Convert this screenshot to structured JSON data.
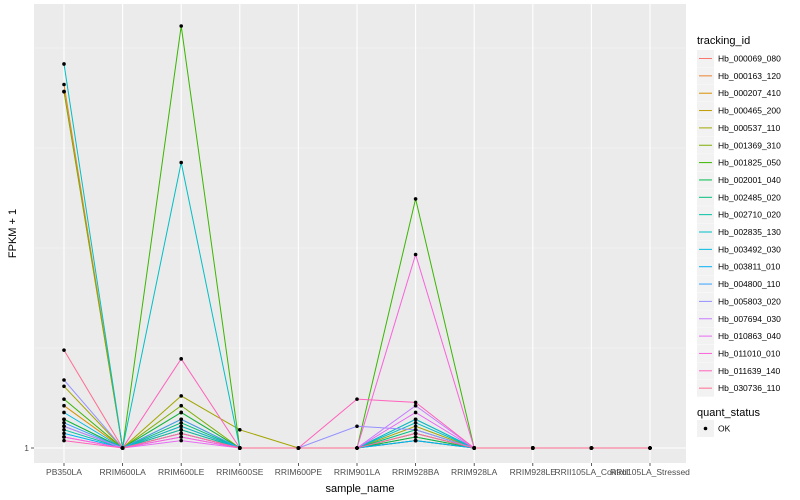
{
  "chart_data": {
    "type": "line",
    "title": "",
    "xlabel": "sample_name",
    "ylabel": "FPKM + 1",
    "y_tick_labels": [
      "1"
    ],
    "y_scale": "log",
    "ylim": [
      1,
      3.2
    ],
    "grid": true,
    "legend_position": "right",
    "categories": [
      "PB350LA",
      "RRIM600LA",
      "RRIM600LE",
      "RRIM600SE",
      "RRIM600PE",
      "RRIM901LA",
      "RRIM928BA",
      "RRIM928LA",
      "RRIM928LE",
      "RRII105LA_Control",
      "RRII105LA_Stressed"
    ],
    "legend": {
      "title": "tracking_id",
      "entries": [
        "Hb_000069_080",
        "Hb_000163_120",
        "Hb_000207_410",
        "Hb_000465_200",
        "Hb_000537_110",
        "Hb_001369_310",
        "Hb_001825_050",
        "Hb_002001_040",
        "Hb_002485_020",
        "Hb_002710_020",
        "Hb_002835_130",
        "Hb_003492_030",
        "Hb_003811_010",
        "Hb_004800_110",
        "Hb_005803_020",
        "Hb_007694_030",
        "Hb_010863_040",
        "Hb_011010_010",
        "Hb_011639_140",
        "Hb_030736_110"
      ],
      "colors": [
        "#F8766D",
        "#EA8331",
        "#D89000",
        "#C09B00",
        "#A3A500",
        "#7CAE00",
        "#39B600",
        "#00BB4E",
        "#00BF7D",
        "#00C1A3",
        "#00BFC4",
        "#00BAE0",
        "#00B0F6",
        "#35A2FF",
        "#9590FF",
        "#C77CFF",
        "#E76BF3",
        "#FA62DB",
        "#FF62BC",
        "#FF6C91"
      ]
    },
    "shape_legend": {
      "title": "quant_status",
      "entries": [
        "OK"
      ]
    },
    "series": [
      {
        "name": "Hb_000069_080",
        "values": [
          2.6,
          1.0,
          1.05,
          1.0,
          1.0,
          1.0,
          1.02,
          1.0,
          1.0,
          1.0,
          1.0
        ]
      },
      {
        "name": "Hb_000163_120",
        "values": [
          2.65,
          1.0,
          1.08,
          1.0,
          1.0,
          1.0,
          1.03,
          1.0,
          1.0,
          1.0,
          1.0
        ]
      },
      {
        "name": "Hb_000207_410",
        "values": [
          1.12,
          1.0,
          1.1,
          1.0,
          1.0,
          1.0,
          1.04,
          1.0,
          1.0,
          1.0,
          1.0
        ]
      },
      {
        "name": "Hb_000465_200",
        "values": [
          1.08,
          1.0,
          1.06,
          1.0,
          1.0,
          1.0,
          1.02,
          1.0,
          1.0,
          1.0,
          1.0
        ]
      },
      {
        "name": "Hb_000537_110",
        "values": [
          1.18,
          1.0,
          1.15,
          1.05,
          1.0,
          1.0,
          1.06,
          1.0,
          1.0,
          1.0,
          1.0
        ]
      },
      {
        "name": "Hb_001369_310",
        "values": [
          2.6,
          1.0,
          1.12,
          1.0,
          1.0,
          1.0,
          1.08,
          1.0,
          1.0,
          1.0,
          1.0
        ]
      },
      {
        "name": "Hb_001825_050",
        "values": [
          1.14,
          1.0,
          3.1,
          1.0,
          1.0,
          1.0,
          1.95,
          1.0,
          1.0,
          1.0,
          1.0
        ]
      },
      {
        "name": "Hb_002001_040",
        "values": [
          1.08,
          1.0,
          1.1,
          1.0,
          1.0,
          1.0,
          1.03,
          1.0,
          1.0,
          1.0,
          1.0
        ]
      },
      {
        "name": "Hb_002485_020",
        "values": [
          1.06,
          1.0,
          1.07,
          1.0,
          1.0,
          1.0,
          1.05,
          1.0,
          1.0,
          1.0,
          1.0
        ]
      },
      {
        "name": "Hb_002710_020",
        "values": [
          1.05,
          1.0,
          1.05,
          1.0,
          1.0,
          1.0,
          1.02,
          1.0,
          1.0,
          1.0,
          1.0
        ]
      },
      {
        "name": "Hb_002835_130",
        "values": [
          2.8,
          1.0,
          2.15,
          1.0,
          1.0,
          1.0,
          1.07,
          1.0,
          1.0,
          1.0,
          1.0
        ]
      },
      {
        "name": "Hb_003492_030",
        "values": [
          1.1,
          1.0,
          1.06,
          1.0,
          1.0,
          1.0,
          1.08,
          1.0,
          1.0,
          1.0,
          1.0
        ]
      },
      {
        "name": "Hb_003811_010",
        "values": [
          1.04,
          1.0,
          1.04,
          1.0,
          1.0,
          1.0,
          1.02,
          1.0,
          1.0,
          1.0,
          1.0
        ]
      },
      {
        "name": "Hb_004800_110",
        "values": [
          1.07,
          1.0,
          1.08,
          1.0,
          1.0,
          1.0,
          1.04,
          1.0,
          1.0,
          1.0,
          1.0
        ]
      },
      {
        "name": "Hb_005803_020",
        "values": [
          1.2,
          1.0,
          1.04,
          1.0,
          1.0,
          1.06,
          1.05,
          1.0,
          1.0,
          1.0,
          1.0
        ]
      },
      {
        "name": "Hb_007694_030",
        "values": [
          1.06,
          1.0,
          1.03,
          1.0,
          1.0,
          1.0,
          1.12,
          1.0,
          1.0,
          1.0,
          1.0
        ]
      },
      {
        "name": "Hb_010863_040",
        "values": [
          1.03,
          1.0,
          1.02,
          1.0,
          1.0,
          1.0,
          1.1,
          1.0,
          1.0,
          1.0,
          1.0
        ]
      },
      {
        "name": "Hb_011010_010",
        "values": [
          1.03,
          1.0,
          1.03,
          1.0,
          1.0,
          1.0,
          1.68,
          1.0,
          1.0,
          1.0,
          1.0
        ]
      },
      {
        "name": "Hb_011639_140",
        "values": [
          1.02,
          1.0,
          1.27,
          1.0,
          1.0,
          1.14,
          1.13,
          1.0,
          1.0,
          1.0,
          1.0
        ]
      },
      {
        "name": "Hb_030736_110",
        "values": [
          1.3,
          1.0,
          1.04,
          1.0,
          1.0,
          1.0,
          1.04,
          1.0,
          1.0,
          1.0,
          1.0
        ]
      }
    ]
  }
}
